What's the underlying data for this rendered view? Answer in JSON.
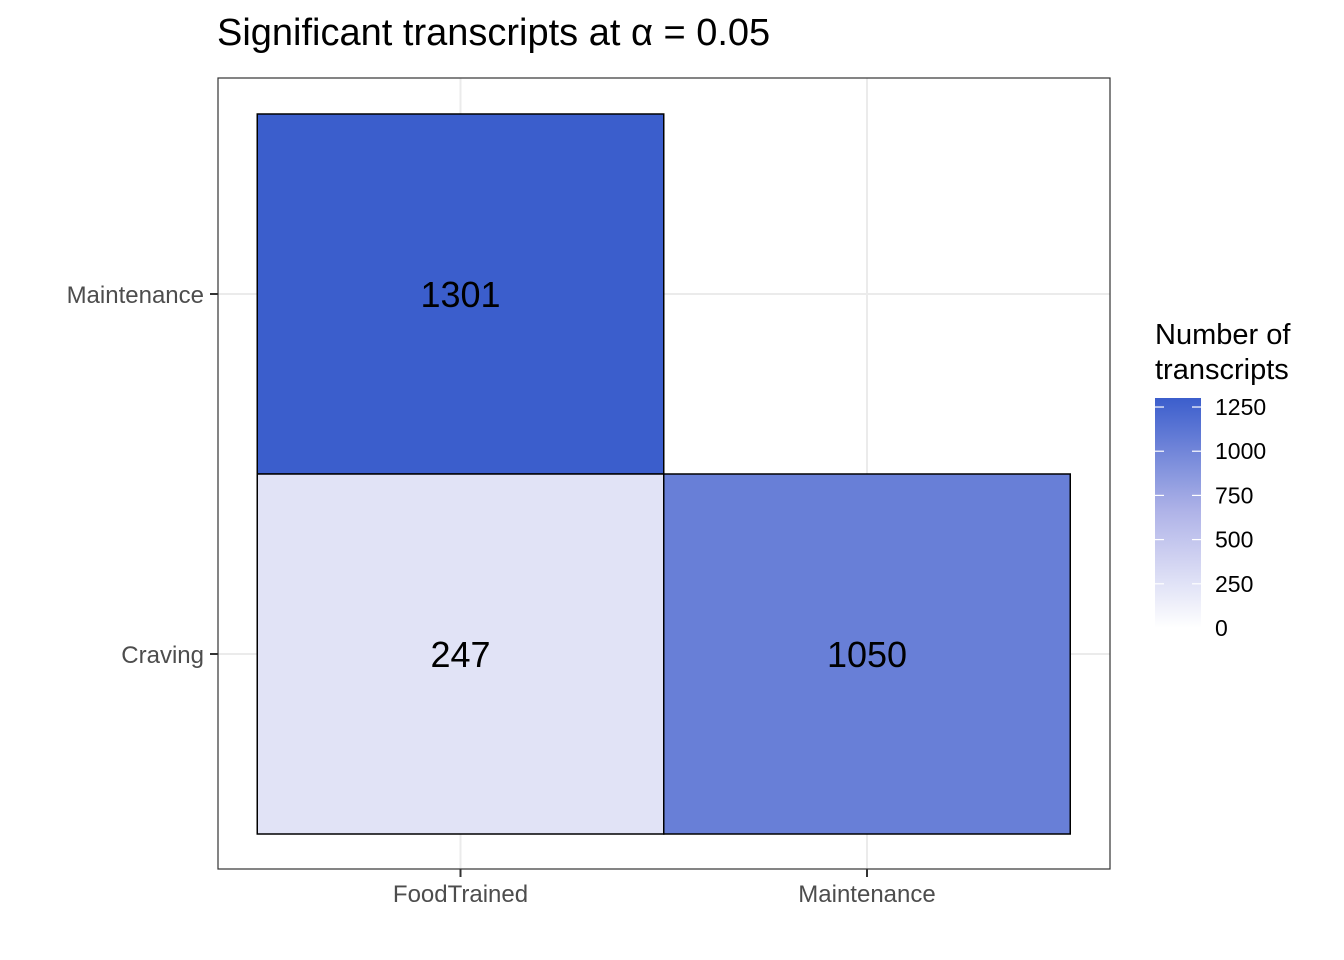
{
  "chart_data": {
    "type": "heatmap",
    "title": "Significant transcripts at  α  =  0.05",
    "xlabel": "",
    "ylabel": "",
    "x_categories": [
      "FoodTrained",
      "Maintenance"
    ],
    "y_categories": [
      "Craving",
      "Maintenance"
    ],
    "cells": [
      {
        "x": "FoodTrained",
        "y": "Maintenance",
        "value": 1301,
        "label": "1301"
      },
      {
        "x": "FoodTrained",
        "y": "Craving",
        "value": 247,
        "label": "247"
      },
      {
        "x": "Maintenance",
        "y": "Craving",
        "value": 1050,
        "label": "1050"
      }
    ],
    "legend": {
      "title_lines": [
        "Number of",
        "transcripts"
      ],
      "ticks": [
        0,
        250,
        500,
        750,
        1000,
        1250
      ],
      "tick_labels": [
        "0",
        "250",
        "500",
        "750",
        "1000",
        "1250"
      ],
      "range": [
        0,
        1301
      ],
      "low_color": "#ffffff",
      "high_color": "#3b5ecc",
      "placement": "right"
    },
    "grid": true,
    "colors": {
      "cell_border": "#000000",
      "panel_border": "#333333",
      "grid": "#ebebeb",
      "tick_label": "#4d4d4d"
    }
  }
}
